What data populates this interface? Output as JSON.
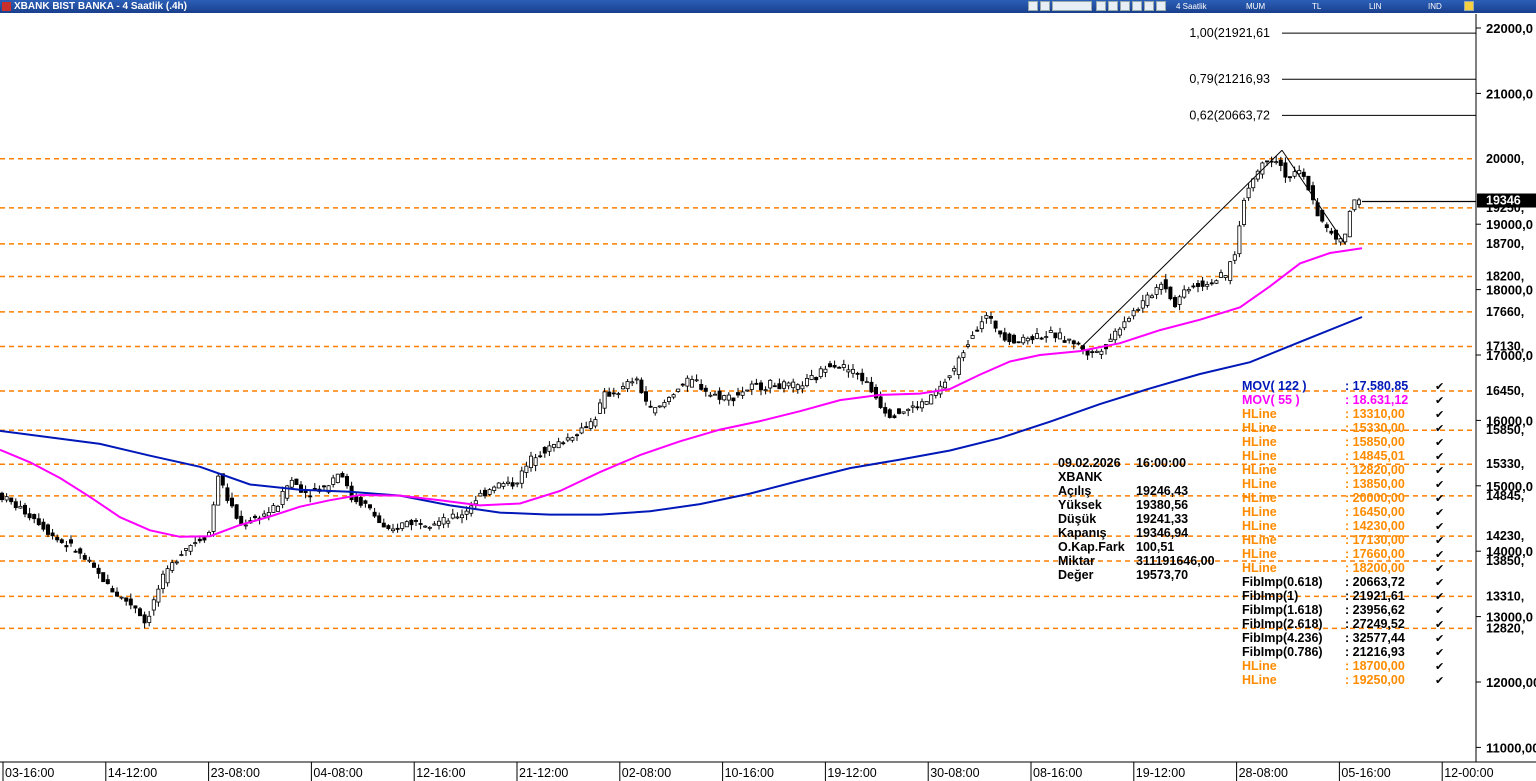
{
  "window": {
    "title": "XBANK BIST BANKA - 4 Saatlik (.4h)",
    "toolbar": {
      "period": "4 Saatlik",
      "type": "MUM",
      "currency": "TL",
      "scale": "LIN",
      "ind": "IND"
    }
  },
  "colors": {
    "candle_up": "#ffffff",
    "candle_down": "#000000",
    "mov122": "#0018b8",
    "mov55": "#ff00ff",
    "hline": "#ff7f00",
    "fib": "#000000",
    "hline_text": "#ff8c00"
  },
  "chart_data": {
    "type": "candlestick",
    "symbol": "XBANK",
    "ylim": [
      10800,
      22400
    ],
    "y_ticks": [
      {
        "value": 11000,
        "label": "11000,00"
      },
      {
        "value": 12000,
        "label": "12000,00"
      },
      {
        "value": 13000,
        "label": "13000,0"
      },
      {
        "value": 14000,
        "label": "14000,0"
      },
      {
        "value": 15000,
        "label": "15000,0"
      },
      {
        "value": 16000,
        "label": "16000,0"
      },
      {
        "value": 17000,
        "label": "17000,0"
      },
      {
        "value": 18000,
        "label": "18000,0"
      },
      {
        "value": 19000,
        "label": "19000,0"
      },
      {
        "value": 21000,
        "label": "21000,0"
      },
      {
        "value": 22000,
        "label": "22000,0"
      }
    ],
    "current_price": {
      "value": 19346.94,
      "label": "19346"
    },
    "x_ticks": [
      "03-16:00",
      "14-12:00",
      "23-08:00",
      "04-08:00",
      "12-16:00",
      "21-12:00",
      "02-08:00",
      "10-16:00",
      "19-12:00",
      "30-08:00",
      "08-16:00",
      "19-12:00",
      "28-08:00",
      "05-16:00",
      "12-00:00"
    ],
    "hlines": [
      {
        "value": 20000,
        "label": "20000,"
      },
      {
        "value": 19250,
        "label": "19250,"
      },
      {
        "value": 18700,
        "label": "18700,"
      },
      {
        "value": 18200,
        "label": "18200,"
      },
      {
        "value": 17660,
        "label": "17660,"
      },
      {
        "value": 17130,
        "label": "17130,"
      },
      {
        "value": 16450,
        "label": "16450,"
      },
      {
        "value": 15850,
        "label": "15850,"
      },
      {
        "value": 15330,
        "label": "15330,"
      },
      {
        "value": 14845,
        "label": "14845,"
      },
      {
        "value": 14230,
        "label": "14230,"
      },
      {
        "value": 13850,
        "label": "13850,"
      },
      {
        "value": 13310,
        "label": "13310,"
      },
      {
        "value": 12820,
        "label": "12820,"
      }
    ],
    "fib_levels": [
      {
        "value": 21921.61,
        "label": "1,00(21921,61"
      },
      {
        "value": 21216.93,
        "label": "0,79(21216,93"
      },
      {
        "value": 20663.72,
        "label": "0,62(20663,72"
      }
    ],
    "trend_lines": [
      {
        "from": [
          1080,
          17100
        ],
        "to": [
          1282,
          20131
        ]
      },
      {
        "from": [
          1282,
          20131
        ],
        "to": [
          1345,
          18700
        ]
      }
    ],
    "mov122": [
      [
        0,
        15840
      ],
      [
        50,
        15740
      ],
      [
        100,
        15640
      ],
      [
        150,
        15460
      ],
      [
        200,
        15290
      ],
      [
        250,
        15020
      ],
      [
        300,
        14940
      ],
      [
        350,
        14910
      ],
      [
        400,
        14850
      ],
      [
        450,
        14700
      ],
      [
        500,
        14590
      ],
      [
        550,
        14560
      ],
      [
        600,
        14560
      ],
      [
        650,
        14610
      ],
      [
        700,
        14720
      ],
      [
        750,
        14880
      ],
      [
        800,
        15080
      ],
      [
        850,
        15270
      ],
      [
        900,
        15400
      ],
      [
        950,
        15540
      ],
      [
        1000,
        15730
      ],
      [
        1050,
        15980
      ],
      [
        1100,
        16250
      ],
      [
        1150,
        16490
      ],
      [
        1200,
        16710
      ],
      [
        1250,
        16890
      ],
      [
        1300,
        17200
      ],
      [
        1362,
        17580.85
      ]
    ],
    "mov55": [
      [
        0,
        15550
      ],
      [
        30,
        15360
      ],
      [
        60,
        15120
      ],
      [
        90,
        14830
      ],
      [
        120,
        14520
      ],
      [
        150,
        14320
      ],
      [
        180,
        14220
      ],
      [
        210,
        14230
      ],
      [
        240,
        14400
      ],
      [
        270,
        14530
      ],
      [
        300,
        14680
      ],
      [
        330,
        14780
      ],
      [
        360,
        14860
      ],
      [
        400,
        14850
      ],
      [
        440,
        14780
      ],
      [
        480,
        14700
      ],
      [
        520,
        14730
      ],
      [
        560,
        14920
      ],
      [
        600,
        15210
      ],
      [
        640,
        15470
      ],
      [
        680,
        15680
      ],
      [
        720,
        15860
      ],
      [
        760,
        15990
      ],
      [
        800,
        16140
      ],
      [
        840,
        16310
      ],
      [
        880,
        16390
      ],
      [
        920,
        16410
      ],
      [
        950,
        16480
      ],
      [
        980,
        16700
      ],
      [
        1010,
        16900
      ],
      [
        1040,
        17000
      ],
      [
        1080,
        17060
      ],
      [
        1120,
        17180
      ],
      [
        1160,
        17380
      ],
      [
        1200,
        17540
      ],
      [
        1240,
        17730
      ],
      [
        1270,
        18050
      ],
      [
        1300,
        18400
      ],
      [
        1330,
        18560
      ],
      [
        1362,
        18631.12
      ]
    ],
    "candle_path": [
      [
        0,
        14900
      ],
      [
        20,
        14700
      ],
      [
        40,
        14500
      ],
      [
        60,
        14200
      ],
      [
        80,
        14020
      ],
      [
        100,
        13700
      ],
      [
        120,
        13350
      ],
      [
        140,
        13150
      ],
      [
        150,
        12900
      ],
      [
        165,
        13500
      ],
      [
        185,
        14000
      ],
      [
        205,
        14200
      ],
      [
        215,
        14300
      ],
      [
        222,
        15200
      ],
      [
        232,
        14800
      ],
      [
        245,
        14400
      ],
      [
        260,
        14500
      ],
      [
        280,
        14650
      ],
      [
        295,
        15100
      ],
      [
        310,
        14900
      ],
      [
        330,
        14980
      ],
      [
        345,
        15250
      ],
      [
        355,
        14820
      ],
      [
        372,
        14700
      ],
      [
        392,
        14260
      ],
      [
        410,
        14450
      ],
      [
        430,
        14450
      ],
      [
        450,
        14450
      ],
      [
        470,
        14600
      ],
      [
        480,
        14800
      ],
      [
        500,
        15020
      ],
      [
        520,
        15040
      ],
      [
        540,
        15500
      ],
      [
        560,
        15620
      ],
      [
        580,
        15800
      ],
      [
        598,
        16000
      ],
      [
        610,
        16400
      ],
      [
        625,
        16450
      ],
      [
        640,
        16650
      ],
      [
        655,
        16150
      ],
      [
        665,
        16200
      ],
      [
        685,
        16550
      ],
      [
        700,
        16600
      ],
      [
        715,
        16400
      ],
      [
        735,
        16350
      ],
      [
        755,
        16500
      ],
      [
        775,
        16550
      ],
      [
        800,
        16500
      ],
      [
        820,
        16650
      ],
      [
        835,
        16900
      ],
      [
        850,
        16800
      ],
      [
        865,
        16680
      ],
      [
        878,
        16420
      ],
      [
        892,
        16100
      ],
      [
        910,
        16150
      ],
      [
        930,
        16270
      ],
      [
        945,
        16500
      ],
      [
        960,
        16800
      ],
      [
        975,
        17300
      ],
      [
        990,
        17600
      ],
      [
        1005,
        17350
      ],
      [
        1020,
        17200
      ],
      [
        1040,
        17300
      ],
      [
        1060,
        17300
      ],
      [
        1080,
        17180
      ],
      [
        1095,
        17000
      ],
      [
        1110,
        17150
      ],
      [
        1130,
        17550
      ],
      [
        1150,
        17830
      ],
      [
        1168,
        18150
      ],
      [
        1178,
        17750
      ],
      [
        1192,
        18050
      ],
      [
        1212,
        18100
      ],
      [
        1230,
        18200
      ],
      [
        1240,
        18600
      ],
      [
        1250,
        19500
      ],
      [
        1262,
        19800
      ],
      [
        1270,
        20000
      ],
      [
        1282,
        20000
      ],
      [
        1292,
        19700
      ],
      [
        1305,
        19800
      ],
      [
        1315,
        19500
      ],
      [
        1325,
        19050
      ],
      [
        1338,
        18800
      ],
      [
        1348,
        18700
      ],
      [
        1355,
        19250
      ],
      [
        1362,
        19346.94
      ]
    ],
    "ohlc_box": {
      "date": "09.02.2026",
      "time": "16:00:00",
      "symbol": "XBANK",
      "rows": [
        {
          "label": "Açılış",
          "value": "19246,43"
        },
        {
          "label": "Yüksek",
          "value": "19380,56"
        },
        {
          "label": "Düşük",
          "value": "19241,33"
        },
        {
          "label": "Kapanış",
          "value": "19346,94"
        },
        {
          "label": "O.Kap.Fark",
          "value": "100,51"
        },
        {
          "label": "Miktar",
          "value": "311191646,00"
        },
        {
          "label": "Değer",
          "value": "19573,70"
        }
      ]
    },
    "legend": [
      {
        "label": "MOV( 122 )",
        "value": ": 17.580,85",
        "color": "#0018b8"
      },
      {
        "label": "MOV( 55 )",
        "value": ": 18.631,12",
        "color": "#ff00ff"
      },
      {
        "label": "HLine",
        "value": ": 13310,00",
        "color": "#ff8c00"
      },
      {
        "label": "HLine",
        "value": ": 15330,00",
        "color": "#ff8c00"
      },
      {
        "label": "HLine",
        "value": ": 15850,00",
        "color": "#ff8c00"
      },
      {
        "label": "HLine",
        "value": ": 14845,01",
        "color": "#ff8c00"
      },
      {
        "label": "HLine",
        "value": ": 12820,00",
        "color": "#ff8c00"
      },
      {
        "label": "HLine",
        "value": ": 13850,00",
        "color": "#ff8c00"
      },
      {
        "label": "HLine",
        "value": ": 20000,00",
        "color": "#ff8c00"
      },
      {
        "label": "HLine",
        "value": ": 16450,00",
        "color": "#ff8c00"
      },
      {
        "label": "HLine",
        "value": ": 14230,00",
        "color": "#ff8c00"
      },
      {
        "label": "HLine",
        "value": ": 17130,00",
        "color": "#ff8c00"
      },
      {
        "label": "HLine",
        "value": ": 17660,00",
        "color": "#ff8c00"
      },
      {
        "label": "HLine",
        "value": ": 18200,00",
        "color": "#ff8c00"
      },
      {
        "label": "FibImp(0.618)",
        "value": ": 20663,72",
        "color": "#000000"
      },
      {
        "label": "FibImp(1)",
        "value": ": 21921,61",
        "color": "#000000"
      },
      {
        "label": "FibImp(1.618)",
        "value": ": 23956,62",
        "color": "#000000"
      },
      {
        "label": "FibImp(2.618)",
        "value": ": 27249,52",
        "color": "#000000"
      },
      {
        "label": "FibImp(4.236)",
        "value": ": 32577,44",
        "color": "#000000"
      },
      {
        "label": "FibImp(0.786)",
        "value": ": 21216,93",
        "color": "#000000"
      },
      {
        "label": "HLine",
        "value": ": 18700,00",
        "color": "#ff8c00"
      },
      {
        "label": "HLine",
        "value": ": 19250,00",
        "color": "#ff8c00"
      }
    ]
  }
}
